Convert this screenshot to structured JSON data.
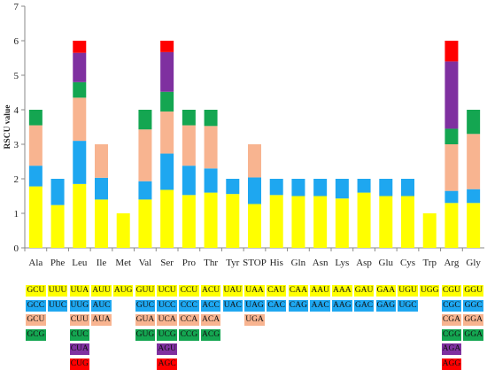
{
  "chart_data": {
    "type": "bar",
    "stacked": true,
    "ylabel": "RSCU value",
    "xlabel": "",
    "title": "",
    "ylim": [
      0,
      7
    ],
    "yticks": [
      0,
      1,
      2,
      3,
      4,
      5,
      6,
      7
    ],
    "grid": false,
    "categories": [
      "Ala",
      "Phe",
      "Leu",
      "Ile",
      "Met",
      "Val",
      "Ser",
      "Pro",
      "Thr",
      "Tyr",
      "STOP",
      "His",
      "Gln",
      "Asn",
      "Lys",
      "Asp",
      "Glu",
      "Cys",
      "Trp",
      "Arg",
      "Gly"
    ],
    "stacks": [
      [
        1.78,
        0.6,
        1.17,
        0.45
      ],
      [
        1.24,
        0.76
      ],
      [
        1.85,
        1.25,
        1.25,
        0.45,
        0.85,
        0.35
      ],
      [
        1.4,
        0.63,
        0.97
      ],
      [
        1.0
      ],
      [
        1.4,
        0.53,
        1.5,
        0.57
      ],
      [
        1.68,
        1.05,
        1.22,
        0.57,
        1.15,
        0.33
      ],
      [
        1.53,
        0.85,
        1.17,
        0.45
      ],
      [
        1.6,
        0.7,
        1.23,
        0.47
      ],
      [
        1.56,
        0.44
      ],
      [
        1.27,
        0.77,
        0.96
      ],
      [
        1.53,
        0.47
      ],
      [
        1.5,
        0.5
      ],
      [
        1.5,
        0.5
      ],
      [
        1.43,
        0.57
      ],
      [
        1.6,
        0.4
      ],
      [
        1.5,
        0.5
      ],
      [
        1.5,
        0.5
      ],
      [
        1.0
      ],
      [
        1.3,
        0.35,
        1.35,
        0.45,
        1.95,
        0.6
      ],
      [
        1.3,
        0.4,
        1.6,
        0.7
      ]
    ],
    "codons": [
      [
        "GCU",
        "GCC",
        "GCU",
        "GCG"
      ],
      [
        "UUU",
        "UUC"
      ],
      [
        "UUA",
        "UUG",
        "CUU",
        "CUC",
        "CUA",
        "CUG"
      ],
      [
        "AUU",
        "AUC",
        "AUA"
      ],
      [
        "AUG"
      ],
      [
        "GUU",
        "GUC",
        "GUA",
        "GUG"
      ],
      [
        "UCU",
        "UCC",
        "UCA",
        "UCG",
        "AGU",
        "AGC"
      ],
      [
        "CCU",
        "CCC",
        "CCA",
        "CCG"
      ],
      [
        "ACU",
        "ACC",
        "ACA",
        "ACG"
      ],
      [
        "UAU",
        "UAC"
      ],
      [
        "UAA",
        "UAG",
        "UGA"
      ],
      [
        "CAU",
        "CAC"
      ],
      [
        "CAA",
        "CAG"
      ],
      [
        "AAU",
        "AAC"
      ],
      [
        "AAA",
        "AAG"
      ],
      [
        "GAU",
        "GAC"
      ],
      [
        "GAA",
        "GAG"
      ],
      [
        "UGU",
        "UGC"
      ],
      [
        "UGG"
      ],
      [
        "CGU",
        "CGC",
        "CGA",
        "CGG",
        "AGA",
        "AGG"
      ],
      [
        "GGU",
        "GGC",
        "GGA",
        "GGA"
      ]
    ],
    "colors": [
      "#ffff00",
      "#1ea7f0",
      "#f8b490",
      "#14a651",
      "#7f30a0",
      "#ff0000"
    ]
  }
}
